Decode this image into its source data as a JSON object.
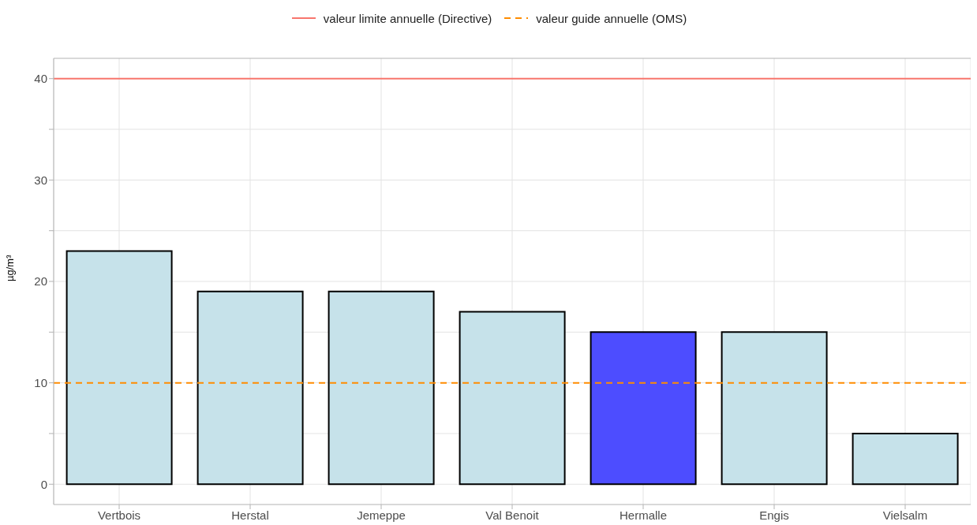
{
  "chart_data": {
    "type": "bar",
    "ylabel": "µg/m³",
    "categories": [
      "Vertbois",
      "Herstal",
      "Jemeppe",
      "Val Benoit",
      "Hermalle",
      "Engis",
      "Vielsalm"
    ],
    "values": [
      23,
      19,
      19,
      17,
      15,
      15,
      5
    ],
    "colors": [
      "#c6e2ea",
      "#c6e2ea",
      "#c6e2ea",
      "#c6e2ea",
      "#4d4dff",
      "#c6e2ea",
      "#c6e2ea"
    ],
    "ylim": [
      -2,
      42
    ],
    "yticks": [
      0,
      {
        "value": 5,
        "label": null
      },
      10,
      {
        "value": 15,
        "label": null
      },
      20,
      {
        "value": 25,
        "label": null
      },
      30,
      {
        "value": 35,
        "label": null
      },
      40
    ],
    "grid": true,
    "legend": "top",
    "ref_lines": [
      {
        "axis": "y",
        "value": 40,
        "label": "valeur limite annuelle (Directive)",
        "color": "#f8766d",
        "line_style": "solid"
      },
      {
        "axis": "y",
        "value": 10,
        "label": "valeur guide annuelle (OMS)",
        "color": "#ff8c00",
        "line_style": "dashed"
      }
    ]
  }
}
